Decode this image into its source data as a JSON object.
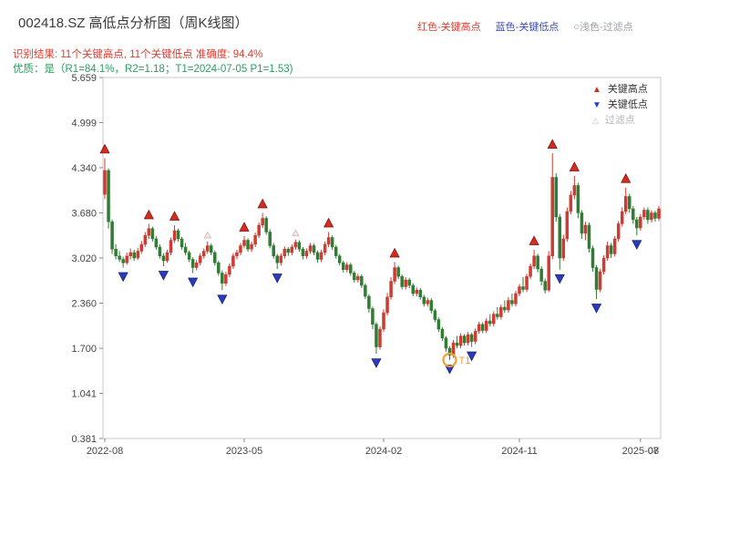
{
  "header": {
    "title": "002418.SZ 高低点分析图（周K线图）",
    "legend_note": {
      "high": "红色-关键高点",
      "low": "蓝色-关键低点",
      "filter": "○浅色-过滤点"
    },
    "result_line": "识别结果: 11个关键高点, 11个关键低点  准确度: 94.4%",
    "quality_line": "优质：是（R1=84.1%，R2=1.18；T1=2024-07-05 P1=1.53)"
  },
  "legend": {
    "high": "关键高点",
    "low": "关键低点",
    "filter": "过滤点"
  },
  "colors": {
    "up": "#cc3c33",
    "down": "#2f7d32",
    "key_high": "#d62b1f",
    "key_high_edge": "#6d1010",
    "key_low": "#2b3bbf",
    "key_low_edge": "#131d6b",
    "filter_fill": "#f5e9e9",
    "filter_edge": "#c9a9a9",
    "highlight": "#f0a030",
    "spine": "#c9c9c9",
    "tick": "#8a8a8a"
  },
  "chart_data": {
    "type": "candlestick",
    "title": "002418.SZ 高低点分析图（周K线图）",
    "ylim": [
      0.381,
      5.659
    ],
    "y_ticks": [
      5.659,
      4.999,
      4.34,
      3.68,
      3.02,
      2.36,
      1.7,
      1.041,
      0.381
    ],
    "x_ticks": [
      {
        "i": 0,
        "label": "2022-08"
      },
      {
        "i": 38,
        "label": "2023-05"
      },
      {
        "i": 76,
        "label": "2024-02"
      },
      {
        "i": 113,
        "label": "2024-11"
      },
      {
        "i": 146,
        "label": "2025-07"
      }
    ],
    "end_label": "08",
    "ohlc_format": [
      "open",
      "high",
      "low",
      "close"
    ],
    "candles": [
      [
        3.95,
        4.48,
        3.88,
        4.3
      ],
      [
        4.3,
        4.33,
        3.45,
        3.55
      ],
      [
        3.55,
        3.58,
        3.08,
        3.15
      ],
      [
        3.15,
        3.22,
        3.0,
        3.05
      ],
      [
        3.05,
        3.12,
        2.96,
        3.0
      ],
      [
        3.0,
        3.04,
        2.88,
        2.95
      ],
      [
        2.95,
        3.1,
        2.92,
        3.05
      ],
      [
        3.05,
        3.16,
        3.0,
        3.1
      ],
      [
        3.1,
        3.14,
        2.98,
        3.02
      ],
      [
        3.02,
        3.17,
        2.99,
        3.12
      ],
      [
        3.12,
        3.27,
        3.08,
        3.22
      ],
      [
        3.22,
        3.4,
        3.18,
        3.35
      ],
      [
        3.35,
        3.52,
        3.3,
        3.45
      ],
      [
        3.45,
        3.48,
        3.26,
        3.3
      ],
      [
        3.3,
        3.34,
        3.14,
        3.18
      ],
      [
        3.18,
        3.22,
        3.01,
        3.05
      ],
      [
        3.05,
        3.09,
        2.9,
        2.98
      ],
      [
        2.98,
        3.14,
        2.95,
        3.1
      ],
      [
        3.1,
        3.32,
        3.06,
        3.28
      ],
      [
        3.28,
        3.5,
        3.24,
        3.42
      ],
      [
        3.42,
        3.45,
        3.26,
        3.3
      ],
      [
        3.3,
        3.33,
        3.14,
        3.18
      ],
      [
        3.18,
        3.24,
        3.06,
        3.1
      ],
      [
        3.1,
        3.13,
        2.96,
        3.0
      ],
      [
        3.0,
        3.03,
        2.8,
        2.88
      ],
      [
        2.88,
        2.99,
        2.84,
        2.95
      ],
      [
        2.95,
        3.09,
        2.91,
        3.05
      ],
      [
        3.05,
        3.16,
        3.01,
        3.12
      ],
      [
        3.12,
        3.26,
        3.08,
        3.2
      ],
      [
        3.2,
        3.23,
        3.06,
        3.1
      ],
      [
        3.1,
        3.13,
        2.91,
        2.95
      ],
      [
        2.95,
        2.98,
        2.76,
        2.8
      ],
      [
        2.8,
        2.84,
        2.55,
        2.65
      ],
      [
        2.65,
        2.82,
        2.61,
        2.78
      ],
      [
        2.78,
        2.94,
        2.74,
        2.9
      ],
      [
        2.9,
        3.09,
        2.86,
        3.05
      ],
      [
        3.05,
        3.14,
        3.0,
        3.1
      ],
      [
        3.1,
        3.24,
        3.06,
        3.2
      ],
      [
        3.2,
        3.34,
        3.16,
        3.28
      ],
      [
        3.28,
        3.31,
        3.11,
        3.15
      ],
      [
        3.15,
        3.26,
        3.11,
        3.22
      ],
      [
        3.22,
        3.39,
        3.18,
        3.35
      ],
      [
        3.35,
        3.54,
        3.31,
        3.5
      ],
      [
        3.5,
        3.68,
        3.46,
        3.6
      ],
      [
        3.6,
        3.63,
        3.36,
        3.4
      ],
      [
        3.4,
        3.44,
        3.16,
        3.2
      ],
      [
        3.2,
        3.24,
        3.01,
        3.05
      ],
      [
        3.05,
        3.08,
        2.86,
        2.95
      ],
      [
        2.95,
        3.09,
        2.91,
        3.05
      ],
      [
        3.05,
        3.19,
        3.01,
        3.15
      ],
      [
        3.15,
        3.18,
        3.05,
        3.1
      ],
      [
        3.1,
        3.22,
        3.06,
        3.18
      ],
      [
        3.18,
        3.29,
        3.14,
        3.25
      ],
      [
        3.25,
        3.28,
        3.11,
        3.15
      ],
      [
        3.15,
        3.18,
        3.0,
        3.05
      ],
      [
        3.05,
        3.16,
        3.01,
        3.12
      ],
      [
        3.12,
        3.24,
        3.08,
        3.2
      ],
      [
        3.2,
        3.23,
        3.06,
        3.1
      ],
      [
        3.1,
        3.13,
        2.95,
        3.0
      ],
      [
        3.0,
        3.14,
        2.96,
        3.1
      ],
      [
        3.1,
        3.26,
        3.06,
        3.22
      ],
      [
        3.22,
        3.4,
        3.18,
        3.32
      ],
      [
        3.32,
        3.35,
        3.14,
        3.18
      ],
      [
        3.18,
        3.21,
        3.01,
        3.05
      ],
      [
        3.05,
        3.08,
        2.91,
        2.95
      ],
      [
        2.95,
        2.98,
        2.81,
        2.85
      ],
      [
        2.85,
        2.96,
        2.81,
        2.92
      ],
      [
        2.92,
        2.95,
        2.76,
        2.8
      ],
      [
        2.8,
        2.83,
        2.66,
        2.7
      ],
      [
        2.7,
        2.79,
        2.66,
        2.75
      ],
      [
        2.75,
        2.78,
        2.58,
        2.62
      ],
      [
        2.62,
        2.65,
        2.42,
        2.46
      ],
      [
        2.46,
        2.49,
        2.22,
        2.28
      ],
      [
        2.28,
        2.31,
        1.98,
        2.05
      ],
      [
        2.05,
        2.08,
        1.62,
        1.72
      ],
      [
        1.72,
        2.02,
        1.68,
        1.98
      ],
      [
        1.98,
        2.27,
        1.94,
        2.22
      ],
      [
        2.22,
        2.51,
        2.18,
        2.45
      ],
      [
        2.45,
        2.74,
        2.41,
        2.68
      ],
      [
        2.68,
        2.96,
        2.64,
        2.88
      ],
      [
        2.88,
        2.91,
        2.71,
        2.75
      ],
      [
        2.75,
        2.78,
        2.56,
        2.6
      ],
      [
        2.6,
        2.74,
        2.56,
        2.7
      ],
      [
        2.7,
        2.73,
        2.58,
        2.62
      ],
      [
        2.62,
        2.65,
        2.46,
        2.5
      ],
      [
        2.5,
        2.59,
        2.46,
        2.55
      ],
      [
        2.55,
        2.58,
        2.41,
        2.45
      ],
      [
        2.45,
        2.48,
        2.31,
        2.35
      ],
      [
        2.35,
        2.44,
        2.31,
        2.4
      ],
      [
        2.4,
        2.43,
        2.21,
        2.25
      ],
      [
        2.25,
        2.28,
        2.08,
        2.12
      ],
      [
        2.12,
        2.15,
        1.94,
        1.98
      ],
      [
        1.98,
        2.01,
        1.81,
        1.85
      ],
      [
        1.85,
        1.88,
        1.65,
        1.7
      ],
      [
        1.7,
        1.73,
        1.53,
        1.6
      ],
      [
        1.6,
        1.82,
        1.56,
        1.78
      ],
      [
        1.78,
        1.88,
        1.7,
        1.74
      ],
      [
        1.74,
        1.92,
        1.7,
        1.88
      ],
      [
        1.88,
        1.91,
        1.74,
        1.78
      ],
      [
        1.78,
        1.94,
        1.74,
        1.9
      ],
      [
        1.9,
        1.93,
        1.72,
        1.8
      ],
      [
        1.8,
        1.99,
        1.76,
        1.95
      ],
      [
        1.95,
        2.09,
        1.91,
        2.05
      ],
      [
        2.05,
        2.08,
        1.92,
        1.96
      ],
      [
        1.96,
        2.14,
        1.92,
        2.1
      ],
      [
        2.1,
        2.2,
        2.02,
        2.06
      ],
      [
        2.06,
        2.24,
        2.02,
        2.2
      ],
      [
        2.2,
        2.3,
        2.12,
        2.16
      ],
      [
        2.16,
        2.34,
        2.12,
        2.3
      ],
      [
        2.3,
        2.4,
        2.22,
        2.26
      ],
      [
        2.26,
        2.45,
        2.22,
        2.4
      ],
      [
        2.4,
        2.5,
        2.31,
        2.35
      ],
      [
        2.35,
        2.54,
        2.31,
        2.5
      ],
      [
        2.5,
        2.64,
        2.46,
        2.6
      ],
      [
        2.6,
        2.74,
        2.52,
        2.56
      ],
      [
        2.56,
        2.79,
        2.52,
        2.75
      ],
      [
        2.75,
        2.94,
        2.71,
        2.9
      ],
      [
        2.9,
        3.14,
        2.86,
        3.05
      ],
      [
        3.05,
        3.08,
        2.81,
        2.86
      ],
      [
        2.86,
        2.9,
        2.62,
        2.68
      ],
      [
        2.68,
        2.72,
        2.5,
        2.55
      ],
      [
        2.55,
        3.12,
        2.52,
        3.05
      ],
      [
        3.05,
        4.55,
        3.0,
        4.2
      ],
      [
        4.2,
        4.26,
        3.55,
        3.62
      ],
      [
        3.62,
        3.66,
        2.85,
        3.02
      ],
      [
        3.02,
        3.36,
        2.98,
        3.3
      ],
      [
        3.3,
        3.76,
        3.26,
        3.7
      ],
      [
        3.7,
        4.0,
        3.66,
        3.94
      ],
      [
        3.94,
        4.22,
        3.88,
        4.08
      ],
      [
        4.08,
        4.12,
        3.6,
        3.68
      ],
      [
        3.68,
        3.72,
        3.3,
        3.38
      ],
      [
        3.38,
        3.55,
        3.28,
        3.5
      ],
      [
        3.5,
        3.54,
        3.1,
        3.16
      ],
      [
        3.16,
        3.2,
        2.82,
        2.88
      ],
      [
        2.88,
        2.92,
        2.42,
        2.56
      ],
      [
        2.56,
        2.86,
        2.52,
        2.82
      ],
      [
        2.82,
        3.06,
        2.78,
        3.02
      ],
      [
        3.02,
        3.26,
        2.98,
        3.2
      ],
      [
        3.2,
        3.24,
        3.02,
        3.08
      ],
      [
        3.08,
        3.34,
        3.04,
        3.3
      ],
      [
        3.3,
        3.56,
        3.26,
        3.52
      ],
      [
        3.52,
        3.76,
        3.48,
        3.7
      ],
      [
        3.7,
        4.05,
        3.66,
        3.92
      ],
      [
        3.92,
        3.96,
        3.68,
        3.74
      ],
      [
        3.74,
        3.78,
        3.52,
        3.58
      ],
      [
        3.58,
        3.62,
        3.35,
        3.46
      ],
      [
        3.46,
        3.66,
        3.42,
        3.62
      ],
      [
        3.62,
        3.76,
        3.58,
        3.72
      ],
      [
        3.72,
        3.76,
        3.52,
        3.58
      ],
      [
        3.58,
        3.72,
        3.54,
        3.68
      ],
      [
        3.68,
        3.71,
        3.55,
        3.6
      ],
      [
        3.6,
        3.78,
        3.56,
        3.74
      ]
    ],
    "key_highs": [
      {
        "index": 0,
        "price": 4.48
      },
      {
        "index": 12,
        "price": 3.52
      },
      {
        "index": 19,
        "price": 3.5
      },
      {
        "index": 38,
        "price": 3.34
      },
      {
        "index": 43,
        "price": 3.68
      },
      {
        "index": 61,
        "price": 3.4
      },
      {
        "index": 79,
        "price": 2.96
      },
      {
        "index": 117,
        "price": 3.14
      },
      {
        "index": 122,
        "price": 4.55
      },
      {
        "index": 128,
        "price": 4.22
      },
      {
        "index": 142,
        "price": 4.05
      }
    ],
    "key_lows": [
      {
        "index": 5,
        "price": 2.88
      },
      {
        "index": 16,
        "price": 2.9
      },
      {
        "index": 24,
        "price": 2.8
      },
      {
        "index": 32,
        "price": 2.55
      },
      {
        "index": 47,
        "price": 2.86
      },
      {
        "index": 74,
        "price": 1.62
      },
      {
        "index": 94,
        "price": 1.53
      },
      {
        "index": 100,
        "price": 1.72
      },
      {
        "index": 124,
        "price": 2.85
      },
      {
        "index": 134,
        "price": 2.42
      },
      {
        "index": 145,
        "price": 3.35
      }
    ],
    "filter_points": [
      {
        "index": 28,
        "price": 3.26
      },
      {
        "index": 52,
        "price": 3.29
      }
    ],
    "highlight": {
      "index": 94,
      "price": 1.53,
      "label": "T1"
    }
  }
}
